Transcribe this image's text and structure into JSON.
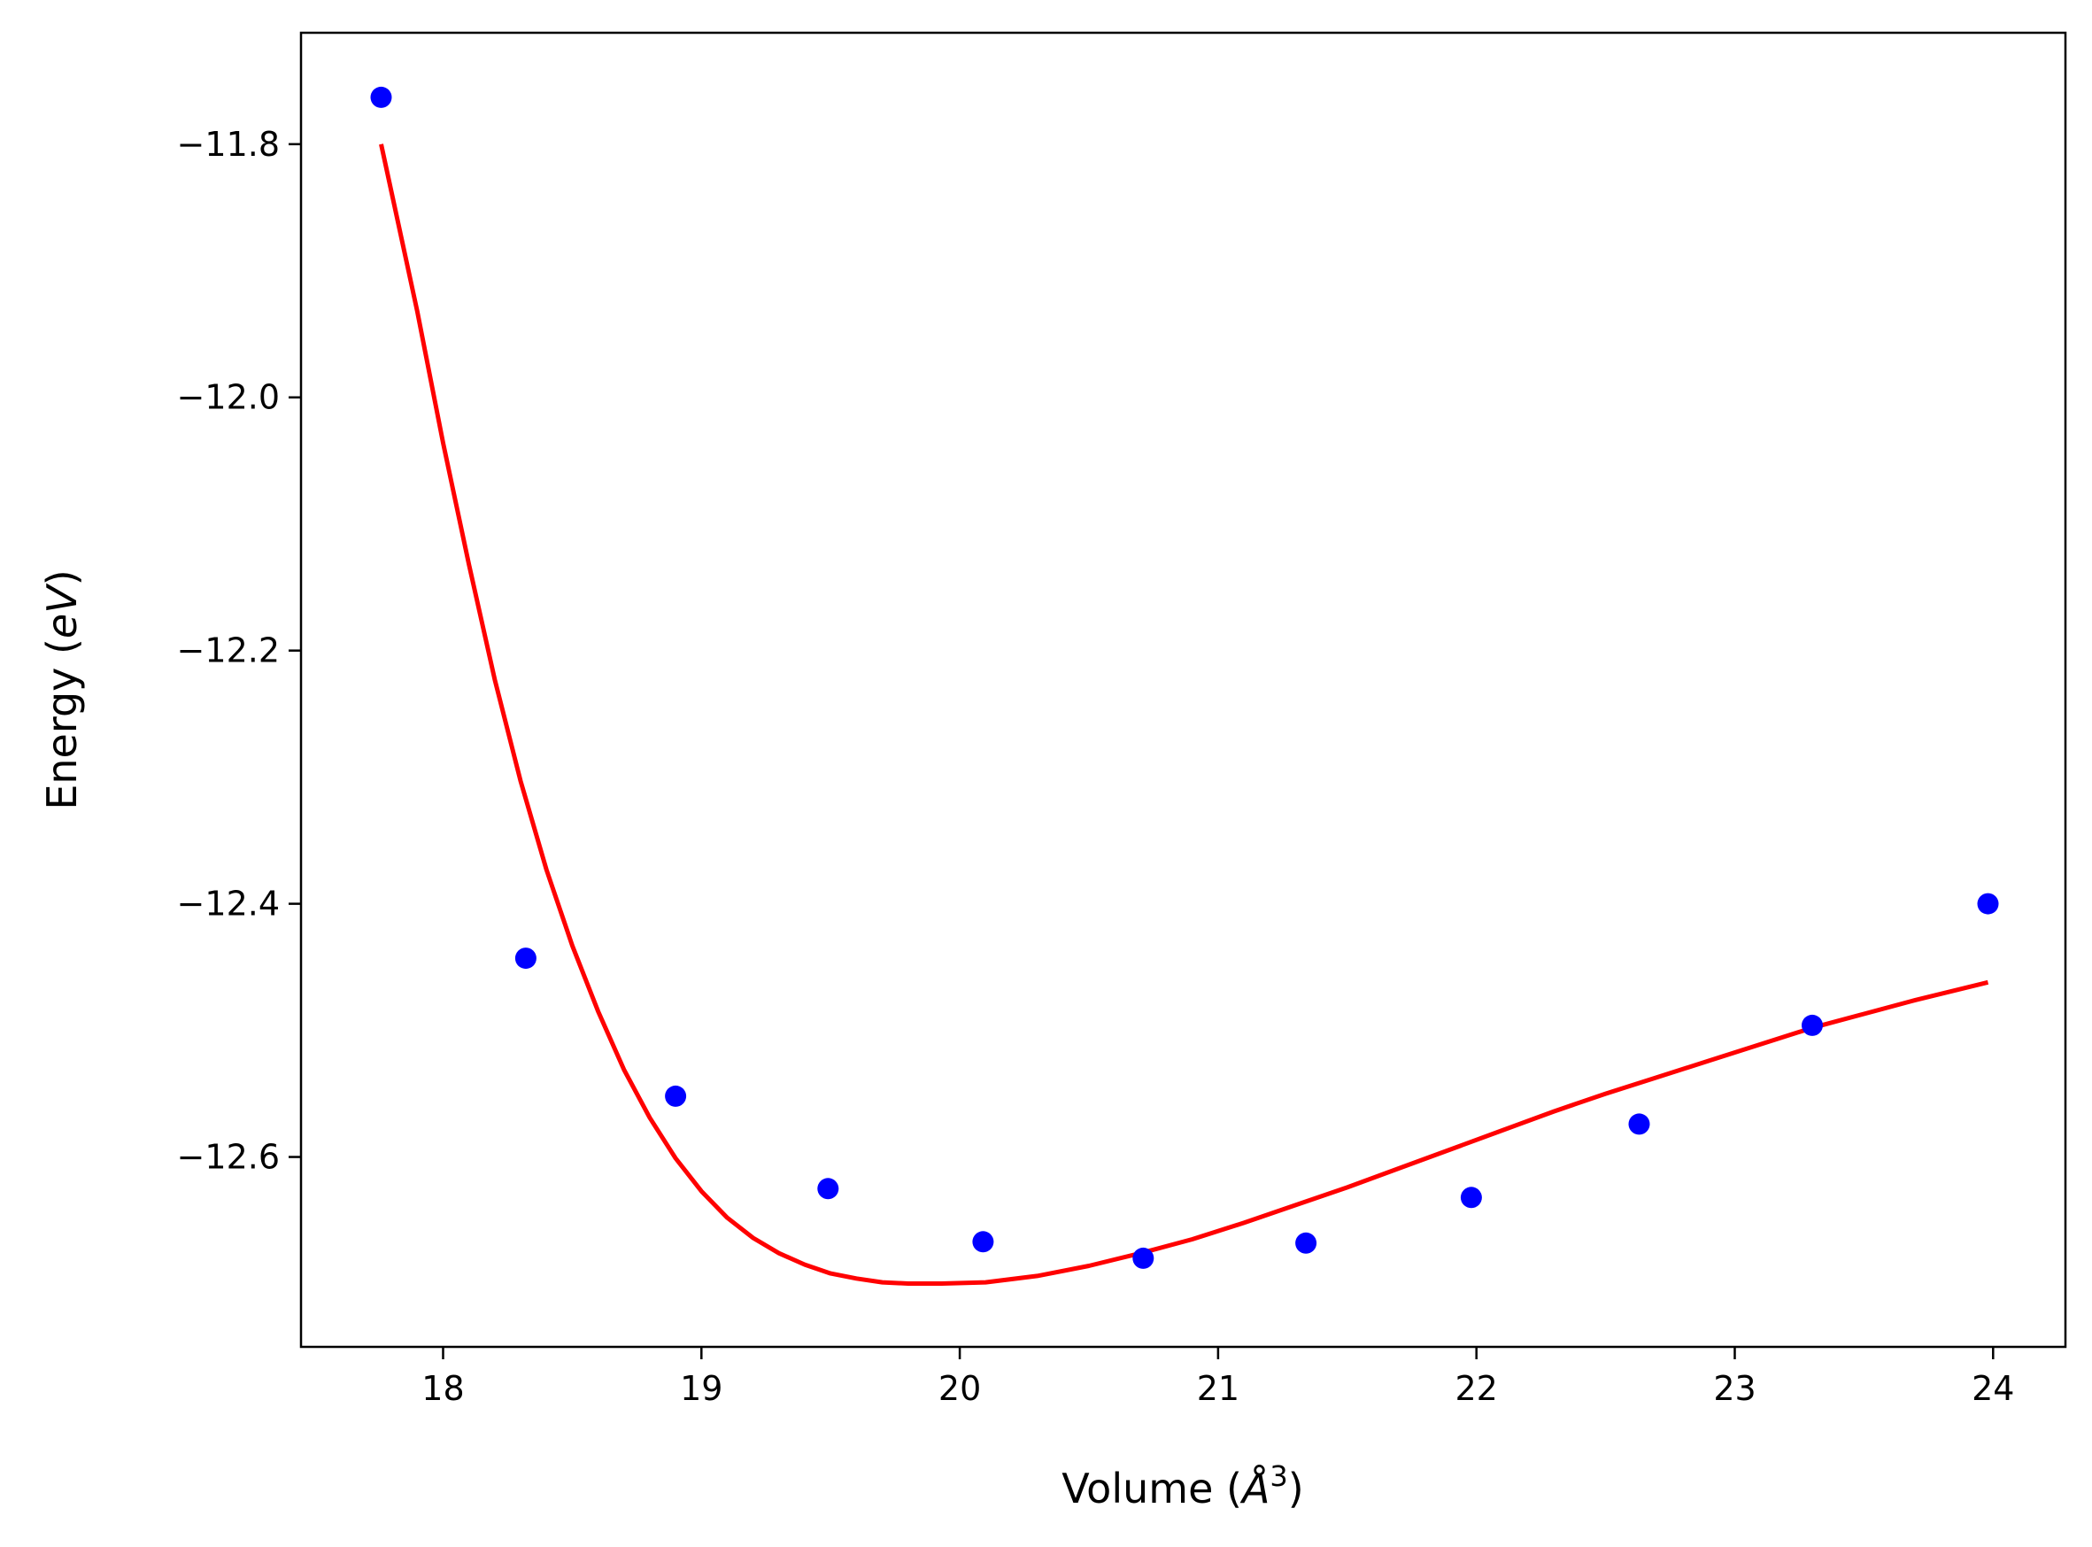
{
  "chart_data": {
    "type": "scatter",
    "title": "",
    "xlabel": "Volume (",
    "xlabel_sym": "Å",
    "xlabel_sup": "3",
    "xlabel_close": ")",
    "ylabel": "Energy (",
    "ylabel_sym": "eV",
    "ylabel_close": ")",
    "xlim": [
      17.45,
      24.28
    ],
    "ylim": [
      -12.75,
      -11.712
    ],
    "xticks": [
      18,
      19,
      20,
      21,
      22,
      23,
      24
    ],
    "xtick_labels": [
      "18",
      "19",
      "20",
      "21",
      "22",
      "23",
      "24"
    ],
    "yticks": [
      -11.8,
      -12.0,
      -12.2,
      -12.4,
      -12.6
    ],
    "ytick_labels": [
      "−11.8",
      "−12.0",
      "−12.2",
      "−12.4",
      "−12.6"
    ],
    "grid": false,
    "series": [
      {
        "kind": "points",
        "color": "#0000ff",
        "x": [
          17.76,
          18.32,
          18.9,
          19.49,
          20.09,
          20.71,
          21.34,
          21.98,
          22.63,
          23.3,
          23.98
        ],
        "y": [
          -11.763,
          -12.443,
          -12.552,
          -12.625,
          -12.667,
          -12.68,
          -12.668,
          -12.632,
          -12.574,
          -12.496,
          -12.4
        ]
      },
      {
        "kind": "line",
        "color": "#ff0000",
        "x": [
          17.76,
          17.9,
          18.0,
          18.1,
          18.2,
          18.3,
          18.4,
          18.5,
          18.6,
          18.7,
          18.8,
          18.9,
          19.0,
          19.1,
          19.2,
          19.3,
          19.4,
          19.5,
          19.6,
          19.7,
          19.8,
          19.93,
          20.1,
          20.3,
          20.5,
          20.7,
          20.9,
          21.1,
          21.3,
          21.5,
          21.7,
          21.9,
          22.1,
          22.3,
          22.5,
          22.7,
          22.9,
          23.1,
          23.3,
          23.5,
          23.7,
          23.98
        ],
        "y": [
          -11.8,
          -11.932,
          -12.036,
          -12.132,
          -12.223,
          -12.303,
          -12.373,
          -12.433,
          -12.485,
          -12.531,
          -12.569,
          -12.601,
          -12.627,
          -12.648,
          -12.664,
          -12.676,
          -12.685,
          -12.692,
          -12.696,
          -12.699,
          -12.7,
          -12.7,
          -12.699,
          -12.694,
          -12.686,
          -12.676,
          -12.665,
          -12.652,
          -12.638,
          -12.624,
          -12.609,
          -12.594,
          -12.579,
          -12.564,
          -12.55,
          -12.537,
          -12.524,
          -12.511,
          -12.498,
          -12.487,
          -12.476,
          -12.462
        ]
      }
    ]
  }
}
